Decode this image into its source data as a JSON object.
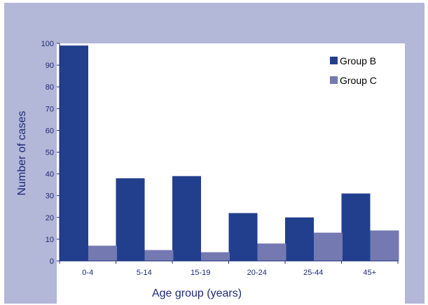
{
  "chart_data": {
    "type": "bar",
    "categories": [
      "0-4",
      "5-14",
      "15-19",
      "20-24",
      "25-44",
      "45+"
    ],
    "series": [
      {
        "name": "Group B",
        "values": [
          99,
          38,
          39,
          22,
          20,
          31
        ],
        "color": "#213f8c"
      },
      {
        "name": "Group C",
        "values": [
          7,
          5,
          4,
          8,
          13,
          14
        ],
        "color": "#7479b2"
      }
    ],
    "xlabel": "Age group (years)",
    "ylabel": "Number of cases",
    "ylim": [
      0,
      100
    ],
    "yticks": [
      0,
      10,
      20,
      30,
      40,
      50,
      60,
      70,
      80,
      90,
      100
    ],
    "grid": false,
    "legend_position": "top-right"
  },
  "colors": {
    "frame_background": "#b3b7d8",
    "plot_background": "#ffffff",
    "axis_text": "#1e2a78"
  }
}
